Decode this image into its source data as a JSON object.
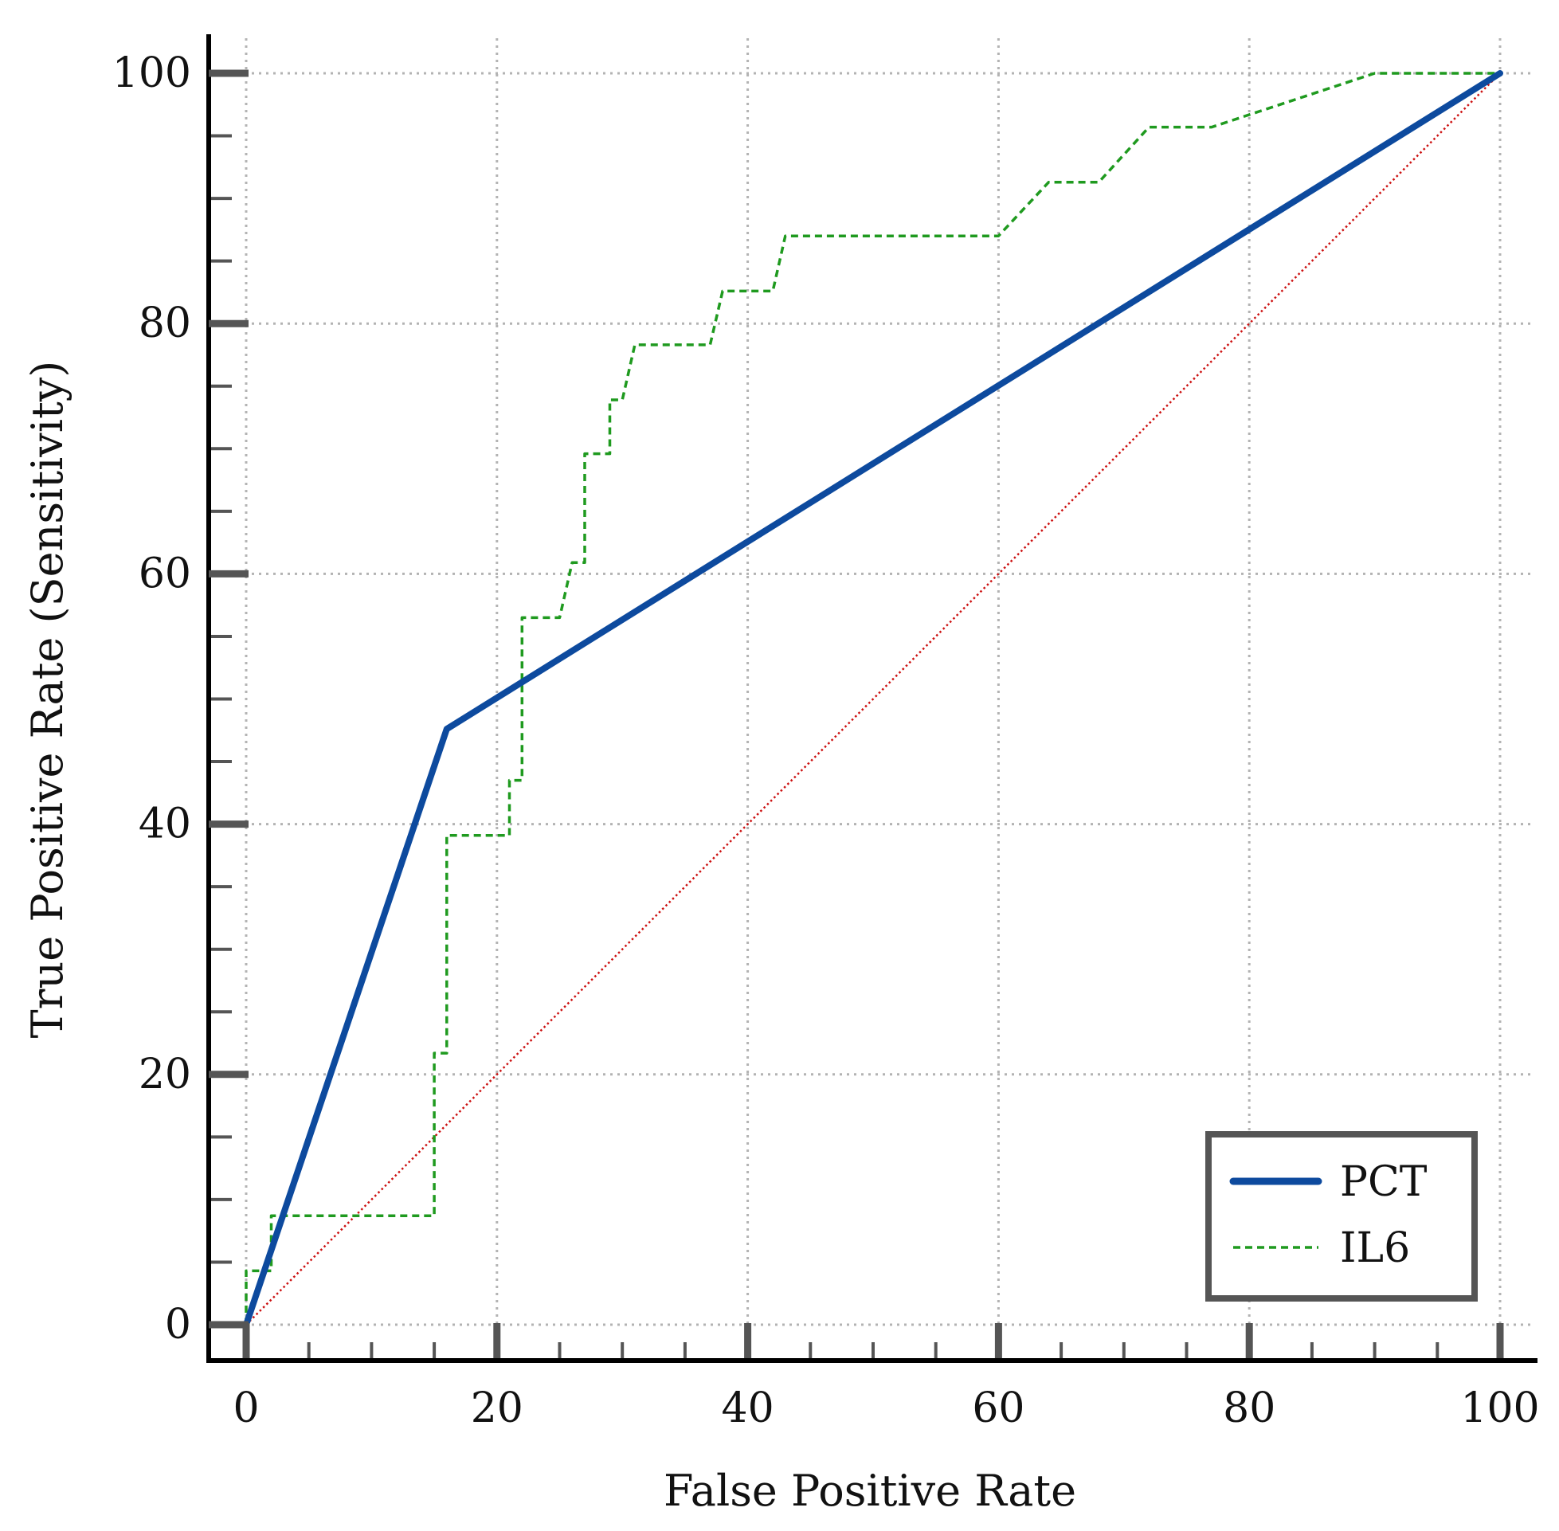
{
  "chart_data": {
    "type": "line",
    "title": "",
    "xlabel": "False Positive Rate",
    "ylabel": "True Positive Rate (Sensitivity)",
    "xlim": [
      0,
      100
    ],
    "ylim": [
      0,
      100
    ],
    "grid": true,
    "x_ticks": [
      0,
      20,
      40,
      60,
      80,
      100
    ],
    "y_ticks": [
      0,
      20,
      40,
      60,
      80,
      100
    ],
    "x_tick_labels": [
      "0",
      "20",
      "40",
      "60",
      "80",
      "100"
    ],
    "y_tick_labels": [
      "0",
      "20",
      "40",
      "60",
      "80",
      "100"
    ],
    "minor_tick_step": 5,
    "legend_position": "bottom-right",
    "series": [
      {
        "name": "PCT",
        "style": "solid",
        "color": "#0d4a9e",
        "x": [
          0,
          16,
          100
        ],
        "y": [
          0,
          47.6,
          100
        ]
      },
      {
        "name": "IL6",
        "style": "dashed",
        "color": "#1f9a1f",
        "x": [
          0,
          0,
          2,
          2,
          15,
          15,
          16,
          16,
          21,
          21,
          22,
          22,
          25,
          26,
          27,
          27,
          29,
          29,
          30,
          31,
          37,
          38,
          42,
          43,
          60,
          64,
          68,
          72,
          77,
          90,
          100
        ],
        "y": [
          0,
          4.3,
          4.3,
          8.7,
          8.7,
          21.7,
          21.7,
          39.1,
          39.1,
          43.5,
          43.5,
          56.5,
          56.5,
          60.9,
          60.9,
          69.6,
          69.6,
          73.9,
          73.9,
          78.3,
          78.3,
          82.6,
          82.6,
          87,
          87,
          91.3,
          91.3,
          95.7,
          95.7,
          100,
          100
        ]
      },
      {
        "name": "reference",
        "style": "dotted",
        "color": "#cc1111",
        "legend": false,
        "x": [
          0,
          100
        ],
        "y": [
          0,
          100
        ]
      }
    ]
  }
}
